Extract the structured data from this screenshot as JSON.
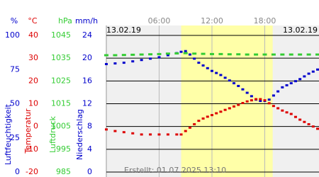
{
  "chart_data": {
    "type": "scatter",
    "date_left": "13.02.19",
    "date_right": "13.02.19",
    "created": "Erstellt: 01.07.2025 13:10",
    "xlim": [
      0,
      24
    ],
    "xticks": [
      {
        "value": 6,
        "label": "06:00"
      },
      {
        "value": 12,
        "label": "12:00"
      },
      {
        "value": 18,
        "label": "18:00"
      }
    ],
    "daylight": [
      8.5,
      18.9
    ],
    "axes": [
      {
        "unit": "%",
        "title": "Luftfeuchtigkeit",
        "color": "#0000cc",
        "ylim": [
          0,
          100
        ],
        "yticks": [
          0,
          25,
          50,
          75,
          100
        ]
      },
      {
        "unit": "°C",
        "title": "Temperatur",
        "color": "#dd0000",
        "ylim": [
          -20,
          40
        ],
        "yticks": [
          -20,
          -10,
          0,
          10,
          20,
          30,
          40
        ]
      },
      {
        "unit": "hPa",
        "title": "Luftdruck",
        "color": "#33cc33",
        "ylim": [
          985,
          1045
        ],
        "yticks": [
          985,
          995,
          1005,
          1015,
          1025,
          1035,
          1045
        ]
      },
      {
        "unit": "mm/h",
        "title": "Niederschlag",
        "color": "#0000cc",
        "ylim": [
          0,
          24
        ],
        "yticks": [
          0,
          4,
          8,
          12,
          16,
          20,
          24
        ]
      }
    ],
    "series": [
      {
        "axis": 0,
        "color": "#0000cc",
        "x": [
          0,
          1,
          2,
          3,
          4,
          5,
          6,
          7,
          8,
          8.5,
          9,
          9.5,
          10,
          10.5,
          11,
          11.5,
          12,
          12.5,
          13,
          13.5,
          14,
          14.5,
          15,
          15.5,
          16,
          16.5,
          17,
          17.5,
          18,
          18.5,
          19,
          19.5,
          20,
          20.5,
          21,
          21.5,
          22,
          22.5,
          23,
          23.5,
          24
        ],
        "values": [
          79,
          79.5,
          80,
          81,
          82,
          83,
          84,
          85.5,
          87,
          88,
          88.5,
          86,
          83,
          80,
          78,
          76,
          74,
          72.5,
          71,
          69,
          67,
          65,
          63,
          60.5,
          58,
          55.5,
          53,
          52,
          52,
          53,
          56,
          59,
          62,
          63.5,
          65,
          66.5,
          68,
          70,
          72,
          73.5,
          75
        ]
      },
      {
        "axis": 1,
        "color": "#dd0000",
        "x": [
          0,
          1,
          2,
          3,
          4,
          5,
          6,
          7,
          8,
          8.5,
          9,
          9.5,
          10,
          10.5,
          11,
          11.5,
          12,
          12.5,
          13,
          13.5,
          14,
          14.5,
          15,
          15.5,
          16,
          16.5,
          17,
          17.5,
          18,
          18.5,
          19,
          19.5,
          20,
          20.5,
          21,
          21.5,
          22,
          22.5,
          23,
          23.5,
          24
        ],
        "values": [
          -1.3,
          -2,
          -2.5,
          -3,
          -3.5,
          -3.5,
          -3.5,
          -3.5,
          -3.5,
          -3.5,
          -2,
          -0.5,
          1,
          2.5,
          3.5,
          4.3,
          5,
          5.8,
          6.5,
          7.3,
          8,
          8.8,
          9.5,
          10.3,
          11,
          11.5,
          12,
          12,
          11.5,
          10.2,
          9,
          8,
          7,
          6.2,
          5.5,
          4.2,
          3,
          2,
          1,
          0,
          -1
        ]
      },
      {
        "axis": 2,
        "color": "#33cc33",
        "x": [
          0,
          1,
          2,
          3,
          4,
          5,
          6,
          7,
          8,
          9,
          10,
          11,
          12,
          13,
          14,
          15,
          16,
          17,
          18,
          19,
          20,
          21,
          22,
          23,
          24
        ],
        "values": [
          1036.3,
          1036.3,
          1036.4,
          1036.5,
          1036.6,
          1036.7,
          1036.8,
          1037,
          1037.1,
          1037.2,
          1037,
          1036.9,
          1036.8,
          1036.8,
          1036.7,
          1036.7,
          1036.6,
          1036.6,
          1036.6,
          1036.6,
          1036.6,
          1036.6,
          1036.6,
          1036.6,
          1036.6
        ]
      }
    ]
  }
}
